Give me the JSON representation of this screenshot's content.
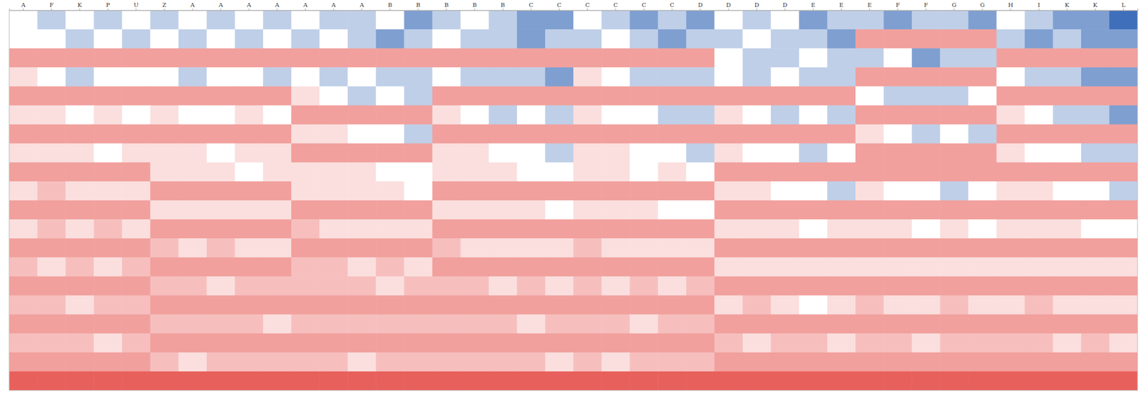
{
  "chart_data": {
    "type": "heatmap",
    "categories": [
      "A",
      "F",
      "K",
      "P",
      "U",
      "Z",
      "A",
      "A",
      "A",
      "A",
      "A",
      "A",
      "A",
      "B",
      "B",
      "B",
      "B",
      "B",
      "C",
      "C",
      "C",
      "C",
      "C",
      "C",
      "D",
      "D",
      "D",
      "D",
      "E",
      "E",
      "E",
      "F",
      "F",
      "G",
      "G",
      "H",
      "I",
      "K",
      "K",
      "L"
    ],
    "tick_labels": "x",
    "color_domain": [
      -3,
      0,
      5
    ],
    "values": [
      [
        0,
        -1,
        0,
        -1,
        0,
        -1,
        0,
        -1,
        0,
        -1,
        0,
        -1,
        -1,
        0,
        -2,
        -1,
        0,
        -1,
        -2,
        -2,
        0,
        -1,
        -2,
        -1,
        -2,
        0,
        -1,
        0,
        -2,
        -1,
        -1,
        -2,
        -1,
        -1,
        -2,
        0,
        -1,
        -2,
        -2,
        -3
      ],
      [
        0,
        0,
        -1,
        0,
        -1,
        0,
        -1,
        0,
        -1,
        0,
        -1,
        0,
        -1,
        -2,
        -1,
        0,
        -1,
        -1,
        -2,
        -1,
        -1,
        0,
        -1,
        -2,
        -1,
        -1,
        0,
        -1,
        -1,
        -2,
        3,
        3,
        3,
        3,
        3,
        -1,
        -2,
        -1,
        -2,
        -2
      ],
      [
        3,
        3,
        3,
        3,
        3,
        3,
        3,
        3,
        3,
        3,
        3,
        3,
        3,
        3,
        3,
        3,
        3,
        3,
        3,
        3,
        3,
        3,
        3,
        3,
        3,
        0,
        -1,
        -1,
        0,
        -1,
        -1,
        0,
        -2,
        -1,
        -1,
        3,
        3,
        3,
        3,
        3
      ],
      [
        1,
        0,
        -1,
        0,
        0,
        0,
        -1,
        0,
        0,
        -1,
        0,
        -1,
        0,
        -1,
        -1,
        0,
        -1,
        -1,
        -1,
        -2,
        1,
        0,
        -1,
        -1,
        -1,
        0,
        -1,
        0,
        -1,
        -1,
        3,
        3,
        3,
        3,
        3,
        0,
        -1,
        -1,
        -2,
        -2
      ],
      [
        3,
        3,
        3,
        3,
        3,
        3,
        3,
        3,
        3,
        3,
        1,
        0,
        -1,
        0,
        -1,
        3,
        3,
        3,
        3,
        3,
        3,
        3,
        3,
        3,
        3,
        3,
        3,
        3,
        3,
        3,
        0,
        -1,
        -1,
        -1,
        0,
        3,
        3,
        3,
        3,
        3
      ],
      [
        1,
        1,
        0,
        1,
        0,
        1,
        0,
        0,
        1,
        0,
        3,
        3,
        3,
        3,
        3,
        1,
        0,
        -1,
        0,
        -1,
        1,
        0,
        0,
        -1,
        -1,
        1,
        0,
        -1,
        0,
        -1,
        3,
        3,
        3,
        3,
        3,
        1,
        0,
        -1,
        -1,
        -2
      ],
      [
        3,
        3,
        3,
        3,
        3,
        3,
        3,
        3,
        3,
        3,
        1,
        1,
        0,
        0,
        -1,
        3,
        3,
        3,
        3,
        3,
        3,
        3,
        3,
        3,
        3,
        3,
        3,
        3,
        3,
        3,
        1,
        0,
        -1,
        0,
        -1,
        3,
        3,
        3,
        3,
        3
      ],
      [
        1,
        1,
        1,
        0,
        1,
        1,
        1,
        0,
        1,
        1,
        3,
        3,
        3,
        3,
        3,
        1,
        1,
        0,
        0,
        -1,
        1,
        1,
        0,
        0,
        -1,
        1,
        0,
        0,
        -1,
        0,
        3,
        3,
        3,
        3,
        3,
        1,
        0,
        0,
        -1,
        -1
      ],
      [
        3,
        3,
        3,
        3,
        3,
        1,
        1,
        1,
        0,
        1,
        1,
        1,
        1,
        0,
        0,
        1,
        1,
        1,
        0,
        0,
        1,
        1,
        0,
        1,
        0,
        3,
        3,
        3,
        3,
        3,
        3,
        3,
        3,
        3,
        3,
        3,
        3,
        3,
        3,
        3
      ],
      [
        1,
        2,
        1,
        1,
        1,
        3,
        3,
        3,
        3,
        3,
        1,
        1,
        1,
        1,
        0,
        3,
        3,
        3,
        3,
        3,
        3,
        3,
        3,
        3,
        3,
        1,
        1,
        0,
        0,
        -1,
        1,
        0,
        0,
        -1,
        0,
        1,
        1,
        0,
        0,
        -1
      ],
      [
        3,
        3,
        3,
        3,
        3,
        1,
        1,
        1,
        1,
        1,
        3,
        3,
        3,
        3,
        3,
        1,
        1,
        1,
        1,
        0,
        1,
        1,
        1,
        0,
        0,
        3,
        3,
        3,
        3,
        3,
        3,
        3,
        3,
        3,
        3,
        3,
        3,
        3,
        3,
        3
      ],
      [
        1,
        2,
        1,
        2,
        1,
        3,
        3,
        3,
        3,
        3,
        2,
        1,
        1,
        1,
        1,
        3,
        3,
        3,
        3,
        3,
        3,
        3,
        3,
        3,
        3,
        1,
        1,
        1,
        0,
        1,
        1,
        1,
        0,
        1,
        0,
        1,
        1,
        1,
        0,
        0
      ],
      [
        3,
        3,
        3,
        3,
        3,
        2,
        1,
        2,
        1,
        1,
        3,
        3,
        3,
        3,
        3,
        2,
        1,
        1,
        1,
        1,
        2,
        1,
        1,
        1,
        1,
        3,
        3,
        3,
        3,
        3,
        3,
        3,
        3,
        3,
        3,
        3,
        3,
        3,
        3,
        3
      ],
      [
        2,
        1,
        2,
        1,
        2,
        3,
        3,
        3,
        3,
        3,
        2,
        2,
        1,
        2,
        1,
        3,
        3,
        3,
        3,
        3,
        3,
        3,
        3,
        3,
        3,
        1,
        1,
        1,
        1,
        1,
        1,
        1,
        1,
        1,
        1,
        1,
        1,
        1,
        1,
        1
      ],
      [
        3,
        3,
        3,
        3,
        3,
        2,
        2,
        1,
        2,
        2,
        2,
        2,
        2,
        1,
        2,
        2,
        2,
        1,
        2,
        1,
        2,
        1,
        2,
        1,
        2,
        3,
        3,
        3,
        3,
        3,
        3,
        3,
        3,
        3,
        3,
        3,
        3,
        3,
        3,
        3
      ],
      [
        2,
        2,
        1,
        2,
        2,
        3,
        3,
        3,
        3,
        3,
        3,
        3,
        3,
        3,
        3,
        3,
        3,
        3,
        3,
        3,
        3,
        3,
        3,
        3,
        3,
        1,
        2,
        1,
        0,
        1,
        2,
        1,
        1,
        2,
        1,
        1,
        2,
        1,
        1,
        1
      ],
      [
        3,
        3,
        3,
        3,
        3,
        2,
        2,
        2,
        2,
        1,
        2,
        2,
        2,
        2,
        2,
        2,
        2,
        2,
        1,
        2,
        2,
        2,
        1,
        2,
        2,
        3,
        3,
        3,
        3,
        3,
        3,
        3,
        3,
        3,
        3,
        3,
        3,
        3,
        3,
        3
      ],
      [
        2,
        2,
        2,
        1,
        2,
        3,
        3,
        3,
        3,
        3,
        3,
        3,
        3,
        3,
        3,
        3,
        3,
        3,
        3,
        3,
        3,
        3,
        3,
        3,
        3,
        2,
        1,
        2,
        2,
        1,
        2,
        2,
        1,
        2,
        2,
        2,
        2,
        1,
        2,
        1
      ],
      [
        3,
        3,
        3,
        3,
        3,
        2,
        1,
        2,
        2,
        2,
        2,
        2,
        1,
        2,
        2,
        2,
        2,
        2,
        2,
        1,
        2,
        1,
        2,
        2,
        2,
        3,
        3,
        3,
        3,
        3,
        3,
        3,
        3,
        3,
        3,
        3,
        3,
        3,
        3,
        3
      ],
      [
        5,
        5,
        5,
        5,
        5,
        5,
        5,
        5,
        5,
        5,
        5,
        5,
        5,
        5,
        5,
        5,
        5,
        5,
        5,
        5,
        5,
        5,
        5,
        5,
        5,
        5,
        5,
        5,
        5,
        5,
        5,
        5,
        5,
        5,
        5,
        5,
        5,
        5,
        5,
        5
      ]
    ]
  }
}
